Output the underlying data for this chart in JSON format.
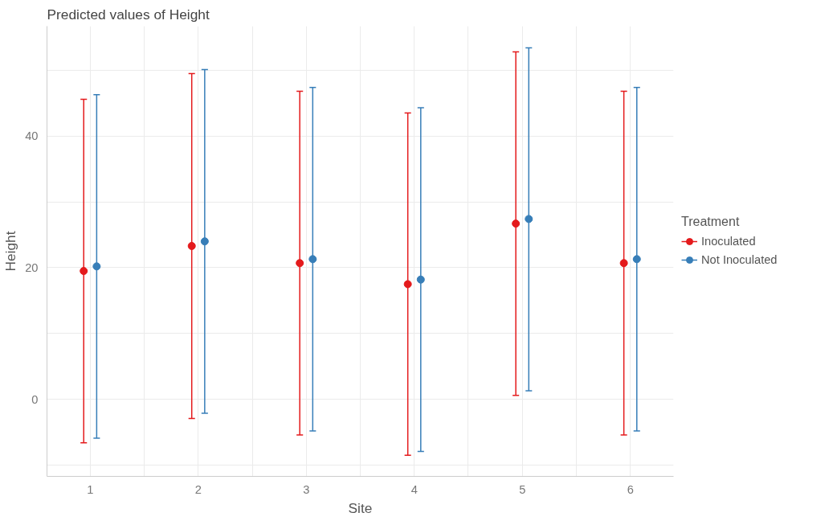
{
  "chart_data": {
    "type": "scatter",
    "title": "Predicted values of Height",
    "xlabel": "Site",
    "ylabel": "Height",
    "legend_title": "Treatment",
    "legend": "right",
    "grid": true,
    "marker": "circle",
    "xlim": [
      0.6,
      6.4
    ],
    "xticks": [
      1,
      {
        "value": 1.5,
        "label": null
      },
      2,
      {
        "value": 2.5,
        "label": null
      },
      3,
      {
        "value": 3.5,
        "label": null
      },
      4,
      {
        "value": 4.5,
        "label": null
      },
      5,
      {
        "value": 5.5,
        "label": null
      },
      6
    ],
    "ylim": [
      -11.7,
      56.7
    ],
    "yticks": [
      {
        "value": -10,
        "label": null
      },
      0,
      {
        "value": 10,
        "label": null
      },
      20,
      {
        "value": 30,
        "label": null
      },
      40,
      {
        "value": 50,
        "label": null
      }
    ],
    "series": [
      {
        "name": "Inoculated",
        "color": "#e41a1c",
        "x": [
          0.94,
          1.94,
          2.94,
          3.94,
          4.94,
          5.94
        ],
        "values": [
          19.5,
          23.3,
          20.7,
          17.5,
          26.7,
          20.7
        ],
        "errors": [
          [
            -6.6,
            45.6
          ],
          [
            -2.9,
            49.5
          ],
          [
            -5.4,
            46.8
          ],
          [
            -8.5,
            43.5
          ],
          [
            0.6,
            52.8
          ],
          [
            -5.4,
            46.8
          ]
        ]
      },
      {
        "name": "Not Inoculated",
        "color": "#377eb8",
        "x": [
          1.06,
          2.06,
          3.06,
          4.06,
          5.06,
          6.06
        ],
        "values": [
          20.2,
          24.0,
          21.3,
          18.2,
          27.4,
          21.3
        ],
        "errors": [
          [
            -5.9,
            46.3
          ],
          [
            -2.1,
            50.1
          ],
          [
            -4.8,
            47.4
          ],
          [
            -7.9,
            44.3
          ],
          [
            1.3,
            53.4
          ],
          [
            -4.8,
            47.4
          ]
        ]
      }
    ]
  }
}
